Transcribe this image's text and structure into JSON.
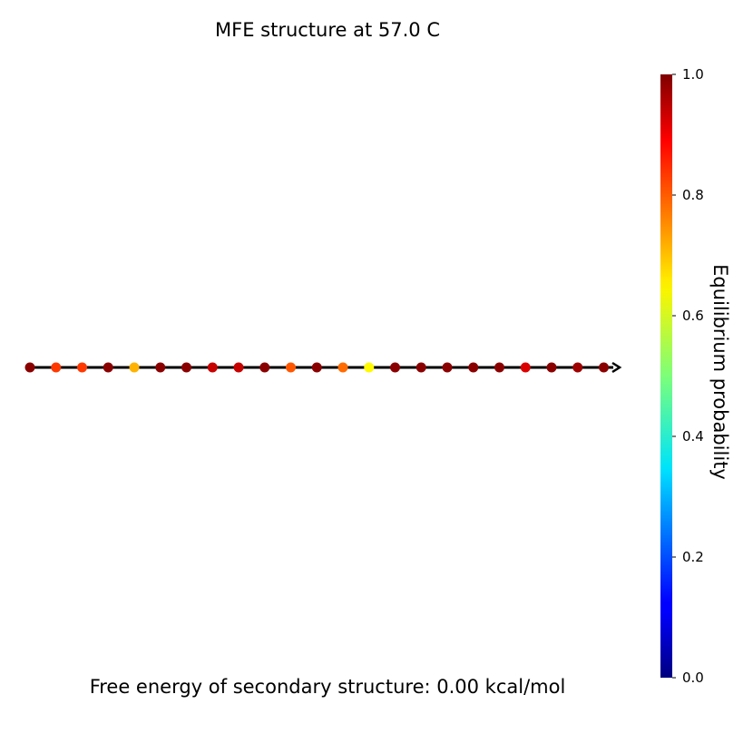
{
  "chart_data": {
    "type": "scatter",
    "title": "MFE structure at 57.0 C",
    "footer": "Free energy of secondary structure: 0.00 kcal/mol",
    "n_bases": 23,
    "probabilities": [
      0.99,
      0.82,
      0.82,
      0.99,
      0.7,
      0.99,
      0.99,
      0.93,
      0.93,
      0.99,
      0.79,
      0.99,
      0.77,
      0.63,
      0.99,
      0.99,
      0.99,
      0.99,
      0.99,
      0.91,
      0.99,
      0.97,
      0.99
    ],
    "colorbar": {
      "label": "Equilibrium probability",
      "range": [
        0.0,
        1.0
      ],
      "ticks": [
        {
          "value": 0.0,
          "label": "0.0"
        },
        {
          "value": 0.2,
          "label": "0.2"
        },
        {
          "value": 0.4,
          "label": "0.4"
        },
        {
          "value": 0.6,
          "label": "0.6"
        },
        {
          "value": 0.8,
          "label": "0.8"
        },
        {
          "value": 1.0,
          "label": "1.0"
        }
      ],
      "colormap": "jet"
    }
  },
  "colors": {
    "backbone": "#000000"
  }
}
